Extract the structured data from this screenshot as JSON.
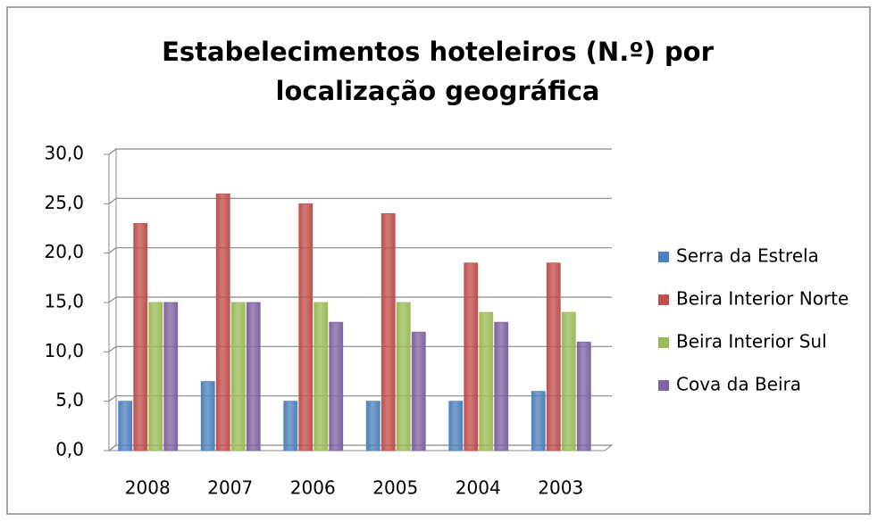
{
  "chart_data": {
    "type": "bar",
    "title": "Estabelecimentos hoteleiros (N.º) por localização geográfica",
    "categories": [
      "2008",
      "2007",
      "2006",
      "2005",
      "2004",
      "2003"
    ],
    "series": [
      {
        "name": "Serra da Estrela",
        "color": "#4f81bd",
        "values": [
          5,
          7,
          5,
          5,
          5,
          6
        ]
      },
      {
        "name": "Beira Interior Norte",
        "color": "#c0504d",
        "values": [
          23,
          26,
          25,
          24,
          19,
          19
        ]
      },
      {
        "name": "Beira Interior Sul",
        "color": "#9bbb59",
        "values": [
          15,
          15,
          15,
          15,
          14,
          14
        ]
      },
      {
        "name": "Cova da Beira",
        "color": "#8064a2",
        "values": [
          15,
          15,
          13,
          12,
          13,
          11
        ]
      }
    ],
    "ylim": [
      0,
      30
    ],
    "yticks": [
      {
        "value": 0,
        "label": "0,0"
      },
      {
        "value": 5,
        "label": "5,0"
      },
      {
        "value": 10,
        "label": "10,0"
      },
      {
        "value": 15,
        "label": "15,0"
      },
      {
        "value": 20,
        "label": "20,0"
      },
      {
        "value": 25,
        "label": "25,0"
      },
      {
        "value": 30,
        "label": "30,0"
      }
    ],
    "grid": true,
    "legend": "right"
  }
}
